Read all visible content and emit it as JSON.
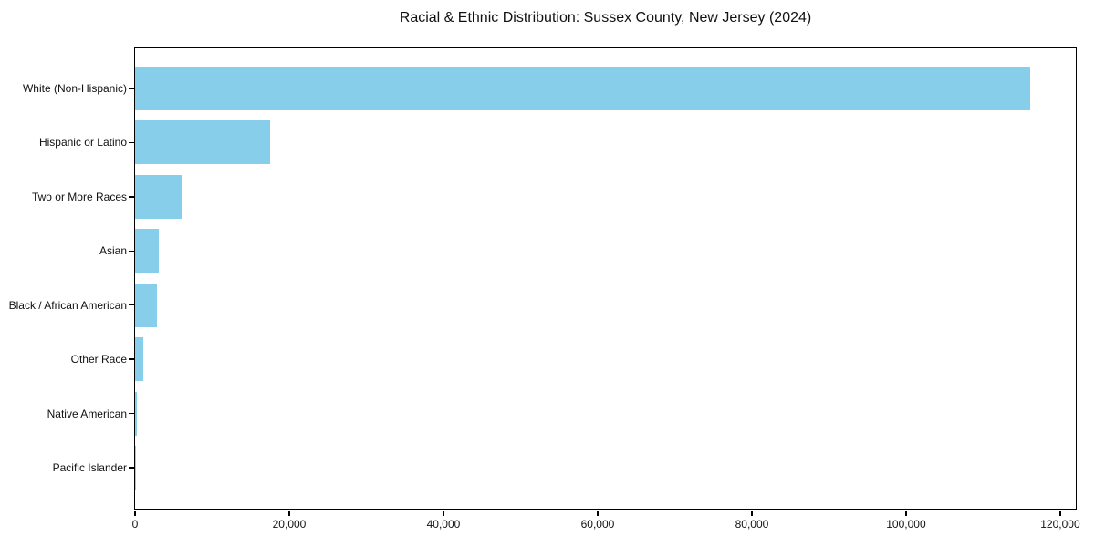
{
  "title": "Racial & Ethnic Distribution: Sussex County, New Jersey (2024)",
  "chart_data": {
    "type": "bar",
    "orientation": "horizontal",
    "title": "Racial & Ethnic Distribution: Sussex County, New Jersey (2024)",
    "categories": [
      "White (Non-Hispanic)",
      "Hispanic or Latino",
      "Two or More Races",
      "Asian",
      "Black / African American",
      "Other Race",
      "Native American",
      "Pacific Islander"
    ],
    "values": [
      116100,
      17500,
      6000,
      3100,
      2800,
      1100,
      200,
      40
    ],
    "xlabel": "",
    "ylabel": "",
    "xlim": [
      0,
      121900
    ],
    "x_ticks": [
      0,
      20000,
      40000,
      60000,
      80000,
      100000,
      120000
    ],
    "x_tick_labels": [
      "0",
      "20,000",
      "40,000",
      "60,000",
      "80,000",
      "100,000",
      "120,000"
    ],
    "bar_color": "#87CEEB",
    "grid": false,
    "legend": null
  }
}
